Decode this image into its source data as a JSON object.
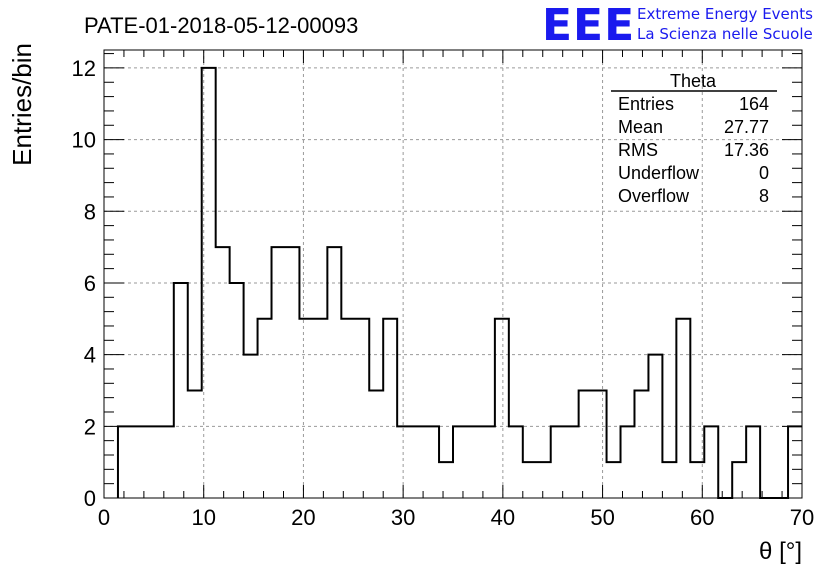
{
  "header": {
    "run_title": "PATE-01-2018-05-12-00093",
    "logo_text": "EEE",
    "logo_line1": "Extreme Energy Events",
    "logo_line2": "La Scienza nelle Scuole",
    "logo_color": "#1a1aee"
  },
  "stats": {
    "title": "Theta",
    "rows": [
      {
        "label": "Entries",
        "value": "164"
      },
      {
        "label": "Mean",
        "value": "27.77"
      },
      {
        "label": "RMS",
        "value": "17.36"
      },
      {
        "label": "Underflow",
        "value": "0"
      },
      {
        "label": "Overflow",
        "value": "8"
      }
    ]
  },
  "chart_data": {
    "type": "bar",
    "title": "PATE-01-2018-05-12-00093",
    "xlabel": "θ [°]",
    "ylabel": "Entries/bin",
    "xlim": [
      0,
      70
    ],
    "ylim": [
      0,
      12.5
    ],
    "grid": true,
    "legend_placement": "top-right",
    "xticks": [
      0,
      10,
      20,
      30,
      40,
      50,
      60,
      70
    ],
    "yticks": [
      0,
      2,
      4,
      6,
      8,
      10,
      12
    ],
    "bin_edges": [
      1.4,
      2.8,
      4.2,
      5.6,
      7.0,
      8.4,
      9.8,
      11.2,
      12.6,
      14.0,
      15.4,
      16.8,
      18.2,
      19.6,
      21.0,
      22.4,
      23.8,
      25.2,
      26.6,
      28.0,
      29.4,
      30.8,
      32.2,
      33.6,
      35.0,
      36.4,
      37.8,
      39.2,
      40.6,
      42.0,
      43.4,
      44.8,
      46.2,
      47.6,
      49.0,
      50.4,
      51.8,
      53.2,
      54.6,
      56.0,
      57.4,
      58.8,
      60.2,
      61.6,
      63.0,
      64.4,
      65.8,
      67.2,
      68.6,
      70.0
    ],
    "values": [
      2,
      2,
      2,
      2,
      6,
      3,
      12,
      7,
      6,
      4,
      5,
      7,
      7,
      5,
      5,
      7,
      5,
      5,
      3,
      5,
      2,
      2,
      2,
      1,
      2,
      2,
      2,
      5,
      2,
      1,
      1,
      2,
      2,
      3,
      3,
      1,
      2,
      3,
      4,
      1,
      5,
      1,
      2,
      0,
      1,
      2,
      0,
      0,
      2
    ]
  }
}
